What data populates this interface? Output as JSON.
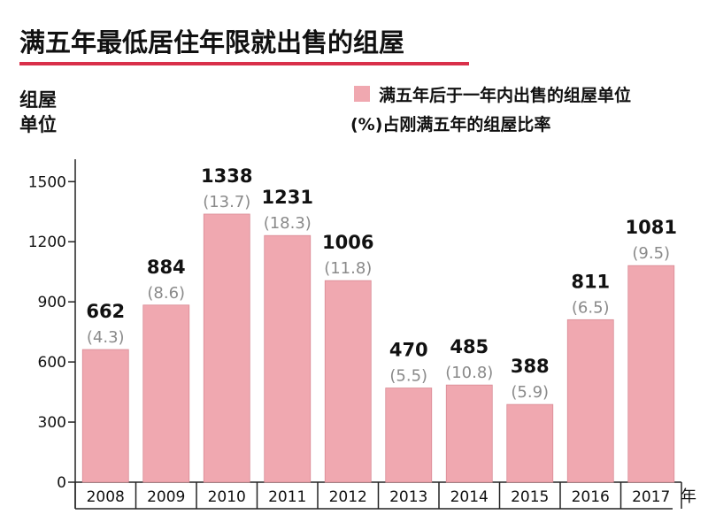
{
  "chart_data": {
    "type": "bar",
    "title": "满五年最低居住年限就出售的组屋",
    "ylabel_lines": [
      "组屋",
      "单位"
    ],
    "xlabel": "年",
    "legend": {
      "bar_label": "满五年后于一年内出售的组屋单位",
      "pct_label": "(%)占刚满五年的组屋比率"
    },
    "categories": [
      "2008",
      "2009",
      "2010",
      "2011",
      "2012",
      "2013",
      "2014",
      "2015",
      "2016",
      "2017"
    ],
    "series": [
      {
        "name": "满五年后于一年内出售的组屋单位",
        "values": [
          662,
          884,
          1338,
          1231,
          1006,
          470,
          485,
          388,
          811,
          1081
        ]
      },
      {
        "name": "(%)占刚满五年的组屋比率",
        "values": [
          4.3,
          8.6,
          13.7,
          18.3,
          11.8,
          5.5,
          10.8,
          5.9,
          6.5,
          9.5
        ]
      }
    ],
    "value_labels": [
      "662",
      "884",
      "1338",
      "1231",
      "1006",
      "470",
      "485",
      "388",
      "811",
      "1081"
    ],
    "pct_labels": [
      "(4.3)",
      "(8.6)",
      "(13.7)",
      "(18.3)",
      "(11.8)",
      "(5.5)",
      "(10.8)",
      "(5.9)",
      "(6.5)",
      "(9.5)"
    ],
    "yticks": [
      "0",
      "300",
      "600",
      "900",
      "1200",
      "1500"
    ],
    "ylim": [
      0,
      1700
    ],
    "grid": false,
    "legend_position": "top-right",
    "colors": {
      "bar": "#f0a8b0",
      "bar_stroke": "#d98a94",
      "title_underline": "#d9304a",
      "pct_text": "#8a8a8a"
    }
  }
}
